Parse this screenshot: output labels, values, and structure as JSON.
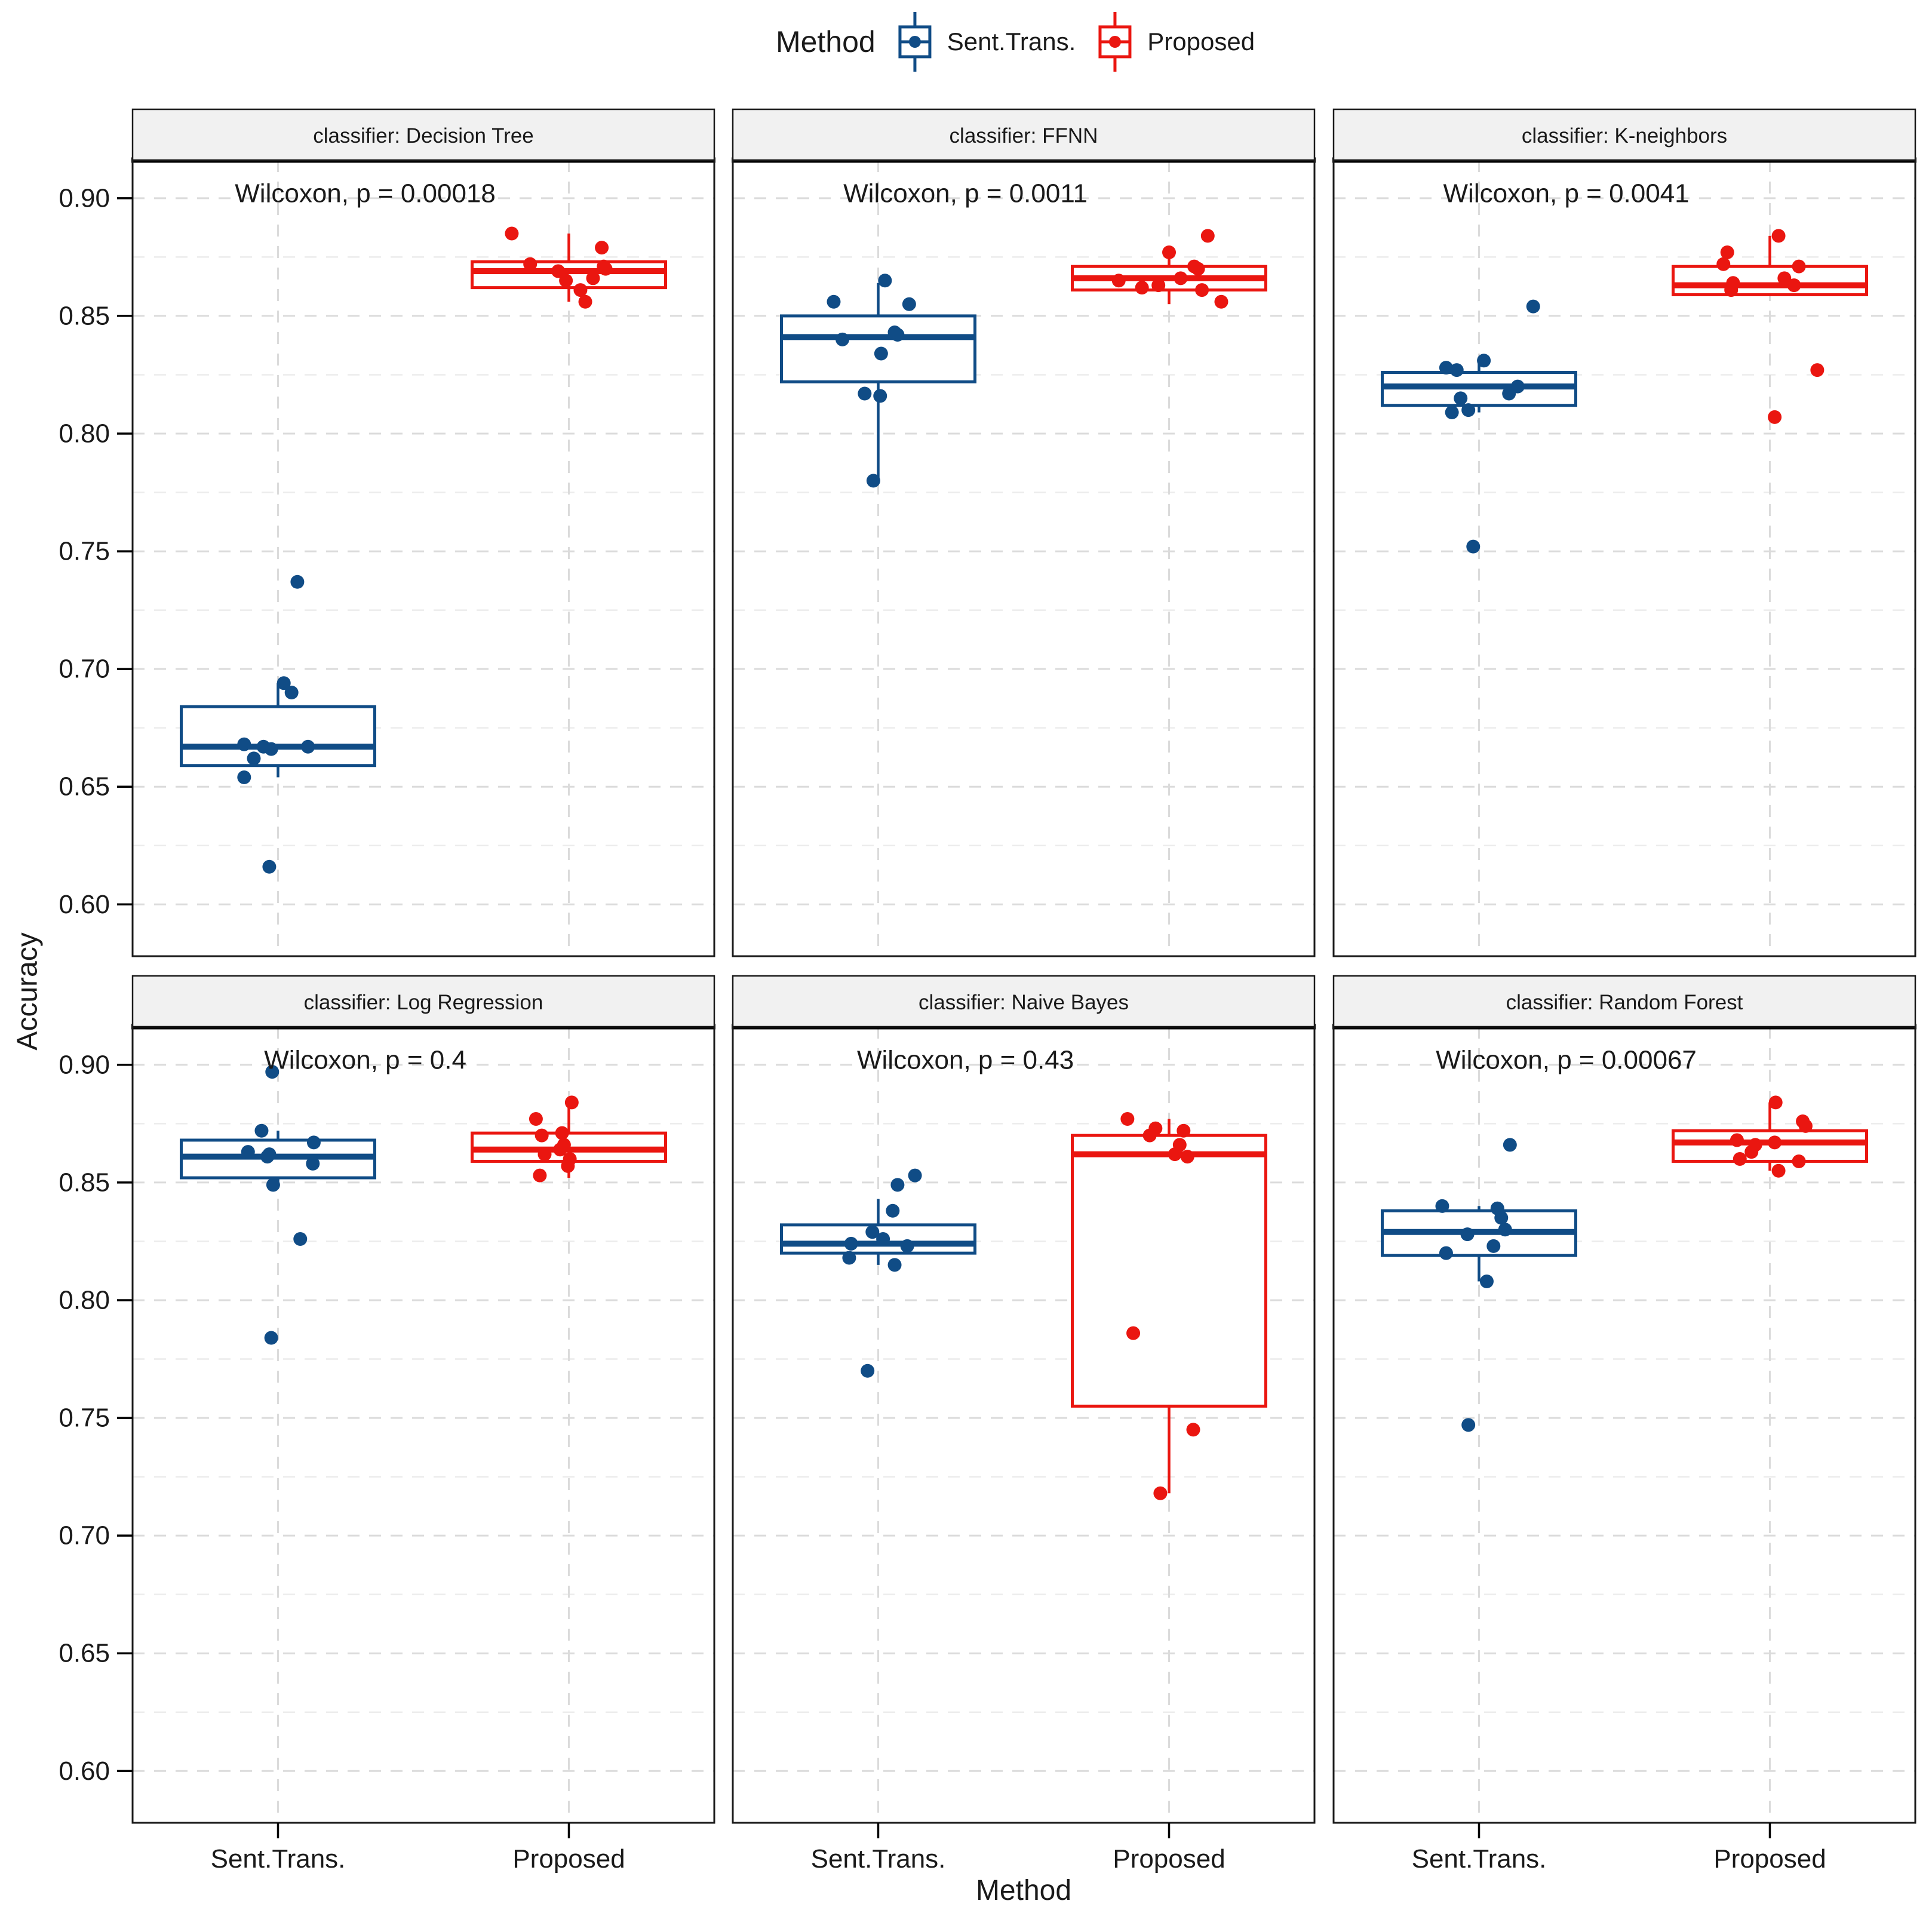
{
  "legend": {
    "title": "Method",
    "items": [
      {
        "label": "Sent.Trans.",
        "color": "#104C86"
      },
      {
        "label": "Proposed",
        "color": "#EA1610"
      }
    ]
  },
  "axes": {
    "y_label": "Accuracy",
    "x_label": "Method",
    "y_tick_labels": [
      "0.90",
      "0.85",
      "0.80",
      "0.75",
      "0.70",
      "0.65",
      "0.60"
    ],
    "y_tick_values": [
      0.9,
      0.85,
      0.8,
      0.75,
      0.7,
      0.65,
      0.6
    ],
    "y_minor_values": [
      0.875,
      0.825,
      0.775,
      0.725,
      0.675,
      0.625
    ],
    "x_categories": [
      "Sent.Trans.",
      "Proposed"
    ]
  },
  "style": {
    "blue": "#104C86",
    "red": "#EA1610",
    "grid_major": "#DBDBDB",
    "grid_minor": "#ECECEC",
    "strip_bg": "#F1F1F1",
    "text": "#1A1A1A",
    "panel_border": "#1A1A1A"
  },
  "chart_data": {
    "type": "boxplot",
    "title": "",
    "ylabel": "Accuracy",
    "xlabel": "Method",
    "y_domain": [
      0.578,
      0.9162
    ],
    "grid": true,
    "legend_position": "top",
    "x_categories": [
      "Sent.Trans.",
      "Proposed"
    ],
    "facets": [
      {
        "title": "classifier: Decision Tree",
        "annotation": "Wilcoxon, p = 0.00018",
        "groups": [
          {
            "name": "Sent.Trans.",
            "color_key": "blue",
            "box": {
              "q1": 0.659,
              "median": 0.667,
              "q3": 0.684,
              "whisker_low": 0.654,
              "whisker_high": 0.694
            },
            "points": [
              [
                0.737,
                0.2
              ],
              [
                0.694,
                0.06
              ],
              [
                0.69,
                0.14
              ],
              [
                0.668,
                -0.35
              ],
              [
                0.667,
                -0.15
              ],
              [
                0.666,
                -0.07
              ],
              [
                0.667,
                0.31
              ],
              [
                0.662,
                -0.25
              ],
              [
                0.654,
                -0.35
              ],
              [
                0.616,
                -0.09
              ]
            ]
          },
          {
            "name": "Proposed",
            "color_key": "red",
            "box": {
              "q1": 0.862,
              "median": 0.869,
              "q3": 0.873,
              "whisker_low": 0.856,
              "whisker_high": 0.885
            },
            "points": [
              [
                0.885,
                -0.59
              ],
              [
                0.879,
                0.34
              ],
              [
                0.872,
                -0.4
              ],
              [
                0.871,
                0.36
              ],
              [
                0.87,
                0.38
              ],
              [
                0.869,
                -0.11
              ],
              [
                0.866,
                0.25
              ],
              [
                0.865,
                -0.03
              ],
              [
                0.861,
                0.12
              ],
              [
                0.856,
                0.17
              ]
            ]
          }
        ]
      },
      {
        "title": "classifier: FFNN",
        "annotation": "Wilcoxon, p = 0.0011",
        "groups": [
          {
            "name": "Sent.Trans.",
            "color_key": "blue",
            "box": {
              "q1": 0.822,
              "median": 0.841,
              "q3": 0.85,
              "whisker_low": 0.78,
              "whisker_high": 0.864
            },
            "points": [
              [
                0.865,
                0.07
              ],
              [
                0.856,
                -0.46
              ],
              [
                0.855,
                0.32
              ],
              [
                0.843,
                0.17
              ],
              [
                0.842,
                0.2
              ],
              [
                0.84,
                -0.37
              ],
              [
                0.834,
                0.03
              ],
              [
                0.817,
                -0.14
              ],
              [
                0.816,
                0.02
              ],
              [
                0.78,
                -0.05
              ]
            ]
          },
          {
            "name": "Proposed",
            "color_key": "red",
            "box": {
              "q1": 0.861,
              "median": 0.866,
              "q3": 0.871,
              "whisker_low": 0.855,
              "whisker_high": 0.877
            },
            "points": [
              [
                0.884,
                0.4
              ],
              [
                0.877,
                0.0
              ],
              [
                0.871,
                0.26
              ],
              [
                0.87,
                0.3
              ],
              [
                0.866,
                0.12
              ],
              [
                0.865,
                -0.52
              ],
              [
                0.863,
                -0.11
              ],
              [
                0.862,
                -0.28
              ],
              [
                0.861,
                0.34
              ],
              [
                0.856,
                0.54
              ]
            ]
          }
        ]
      },
      {
        "title": "classifier: K-neighbors",
        "annotation": "Wilcoxon, p = 0.0041",
        "groups": [
          {
            "name": "Sent.Trans.",
            "color_key": "blue",
            "box": {
              "q1": 0.812,
              "median": 0.82,
              "q3": 0.826,
              "whisker_low": 0.809,
              "whisker_high": 0.831
            },
            "points": [
              [
                0.854,
                0.56
              ],
              [
                0.831,
                0.05
              ],
              [
                0.828,
                -0.34
              ],
              [
                0.827,
                -0.23
              ],
              [
                0.82,
                0.4
              ],
              [
                0.817,
                0.31
              ],
              [
                0.815,
                -0.19
              ],
              [
                0.81,
                -0.11
              ],
              [
                0.809,
                -0.28
              ],
              [
                0.752,
                -0.06
              ]
            ]
          },
          {
            "name": "Proposed",
            "color_key": "red",
            "box": {
              "q1": 0.859,
              "median": 0.863,
              "q3": 0.871,
              "whisker_low": 0.859,
              "whisker_high": 0.884
            },
            "points": [
              [
                0.884,
                0.09
              ],
              [
                0.877,
                -0.44
              ],
              [
                0.872,
                -0.48
              ],
              [
                0.871,
                0.3
              ],
              [
                0.866,
                0.15
              ],
              [
                0.864,
                -0.38
              ],
              [
                0.863,
                0.25
              ],
              [
                0.861,
                -0.4
              ],
              [
                0.827,
                0.49
              ],
              [
                0.807,
                0.05
              ]
            ]
          }
        ]
      },
      {
        "title": "classifier: Log Regression",
        "annotation": "Wilcoxon, p = 0.4",
        "groups": [
          {
            "name": "Sent.Trans.",
            "color_key": "blue",
            "box": {
              "q1": 0.852,
              "median": 0.861,
              "q3": 0.868,
              "whisker_low": 0.849,
              "whisker_high": 0.872
            },
            "points": [
              [
                0.897,
                -0.06
              ],
              [
                0.872,
                -0.17
              ],
              [
                0.867,
                0.37
              ],
              [
                0.863,
                -0.31
              ],
              [
                0.862,
                -0.09
              ],
              [
                0.861,
                -0.11
              ],
              [
                0.858,
                0.36
              ],
              [
                0.849,
                -0.05
              ],
              [
                0.826,
                0.23
              ],
              [
                0.784,
                -0.07
              ]
            ]
          },
          {
            "name": "Proposed",
            "color_key": "red",
            "box": {
              "q1": 0.859,
              "median": 0.864,
              "q3": 0.871,
              "whisker_low": 0.852,
              "whisker_high": 0.884
            },
            "points": [
              [
                0.884,
                0.03
              ],
              [
                0.877,
                -0.34
              ],
              [
                0.871,
                -0.07
              ],
              [
                0.87,
                -0.28
              ],
              [
                0.866,
                -0.05
              ],
              [
                0.864,
                -0.09
              ],
              [
                0.862,
                -0.25
              ],
              [
                0.86,
                0.01
              ],
              [
                0.857,
                -0.01
              ],
              [
                0.853,
                -0.3
              ]
            ]
          }
        ]
      },
      {
        "title": "classifier: Naive Bayes",
        "annotation": "Wilcoxon, p = 0.43",
        "groups": [
          {
            "name": "Sent.Trans.",
            "color_key": "blue",
            "box": {
              "q1": 0.82,
              "median": 0.824,
              "q3": 0.832,
              "whisker_low": 0.815,
              "whisker_high": 0.843
            },
            "points": [
              [
                0.853,
                0.38
              ],
              [
                0.849,
                0.2
              ],
              [
                0.838,
                0.15
              ],
              [
                0.829,
                -0.06
              ],
              [
                0.826,
                0.05
              ],
              [
                0.824,
                -0.28
              ],
              [
                0.823,
                0.3
              ],
              [
                0.818,
                -0.3
              ],
              [
                0.815,
                0.17
              ],
              [
                0.77,
                -0.11
              ]
            ]
          },
          {
            "name": "Proposed",
            "color_key": "red",
            "box": {
              "q1": 0.755,
              "median": 0.862,
              "q3": 0.87,
              "whisker_low": 0.718,
              "whisker_high": 0.877
            },
            "points": [
              [
                0.877,
                -0.43
              ],
              [
                0.873,
                -0.14
              ],
              [
                0.872,
                0.15
              ],
              [
                0.87,
                -0.2
              ],
              [
                0.866,
                0.11
              ],
              [
                0.862,
                0.06
              ],
              [
                0.861,
                0.19
              ],
              [
                0.786,
                -0.37
              ],
              [
                0.745,
                0.25
              ],
              [
                0.718,
                -0.09
              ]
            ]
          }
        ]
      },
      {
        "title": "classifier: Random Forest",
        "annotation": "Wilcoxon, p = 0.00067",
        "groups": [
          {
            "name": "Sent.Trans.",
            "color_key": "blue",
            "box": {
              "q1": 0.819,
              "median": 0.829,
              "q3": 0.838,
              "whisker_low": 0.808,
              "whisker_high": 0.84
            },
            "points": [
              [
                0.866,
                0.32
              ],
              [
                0.84,
                -0.38
              ],
              [
                0.839,
                0.19
              ],
              [
                0.835,
                0.23
              ],
              [
                0.83,
                0.27
              ],
              [
                0.828,
                -0.12
              ],
              [
                0.823,
                0.15
              ],
              [
                0.82,
                -0.34
              ],
              [
                0.808,
                0.08
              ],
              [
                0.747,
                -0.11
              ]
            ]
          },
          {
            "name": "Proposed",
            "color_key": "red",
            "box": {
              "q1": 0.859,
              "median": 0.867,
              "q3": 0.872,
              "whisker_low": 0.855,
              "whisker_high": 0.884
            },
            "points": [
              [
                0.884,
                0.06
              ],
              [
                0.876,
                0.34
              ],
              [
                0.874,
                0.37
              ],
              [
                0.868,
                -0.34
              ],
              [
                0.867,
                0.05
              ],
              [
                0.866,
                -0.15
              ],
              [
                0.863,
                -0.19
              ],
              [
                0.86,
                -0.31
              ],
              [
                0.859,
                0.3
              ],
              [
                0.855,
                0.09
              ]
            ]
          }
        ]
      }
    ]
  }
}
